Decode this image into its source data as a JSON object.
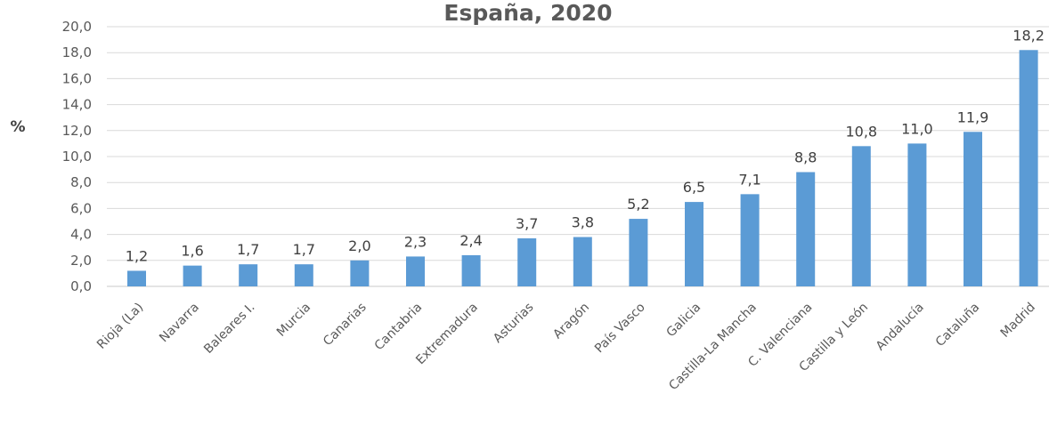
{
  "chart_data": {
    "type": "bar",
    "title": "España, 2020",
    "ylabel": "%",
    "xlabel": "",
    "ylim": [
      0,
      20
    ],
    "yticks": [
      "0,0",
      "2,0",
      "4,0",
      "6,0",
      "8,0",
      "10,0",
      "12,0",
      "14,0",
      "16,0",
      "18,0",
      "20,0"
    ],
    "ytick_values": [
      0,
      2,
      4,
      6,
      8,
      10,
      12,
      14,
      16,
      18,
      20
    ],
    "grid": true,
    "bar_color": "#5B9BD5",
    "categories": [
      "Rioja (La)",
      "Navarra",
      "Baleares I.",
      "Murcia",
      "Canarias",
      "Cantabria",
      "Extremadura",
      "Asturias",
      "Aragón",
      "País Vasco",
      "Galicia",
      "Castilla-La Mancha",
      "C. Valenciana",
      "Castilla y León",
      "Andalucía",
      "Cataluña",
      "Madrid"
    ],
    "values": [
      1.2,
      1.6,
      1.7,
      1.7,
      2.0,
      2.3,
      2.4,
      3.7,
      3.8,
      5.2,
      6.5,
      7.1,
      8.8,
      10.8,
      11.0,
      11.9,
      18.2
    ],
    "data_labels": [
      "1,2",
      "1,6",
      "1,7",
      "1,7",
      "2,0",
      "2,3",
      "2,4",
      "3,7",
      "3,8",
      "5,2",
      "6,5",
      "7,1",
      "8,8",
      "10,8",
      "11,0",
      "11,9",
      "18,2"
    ]
  }
}
